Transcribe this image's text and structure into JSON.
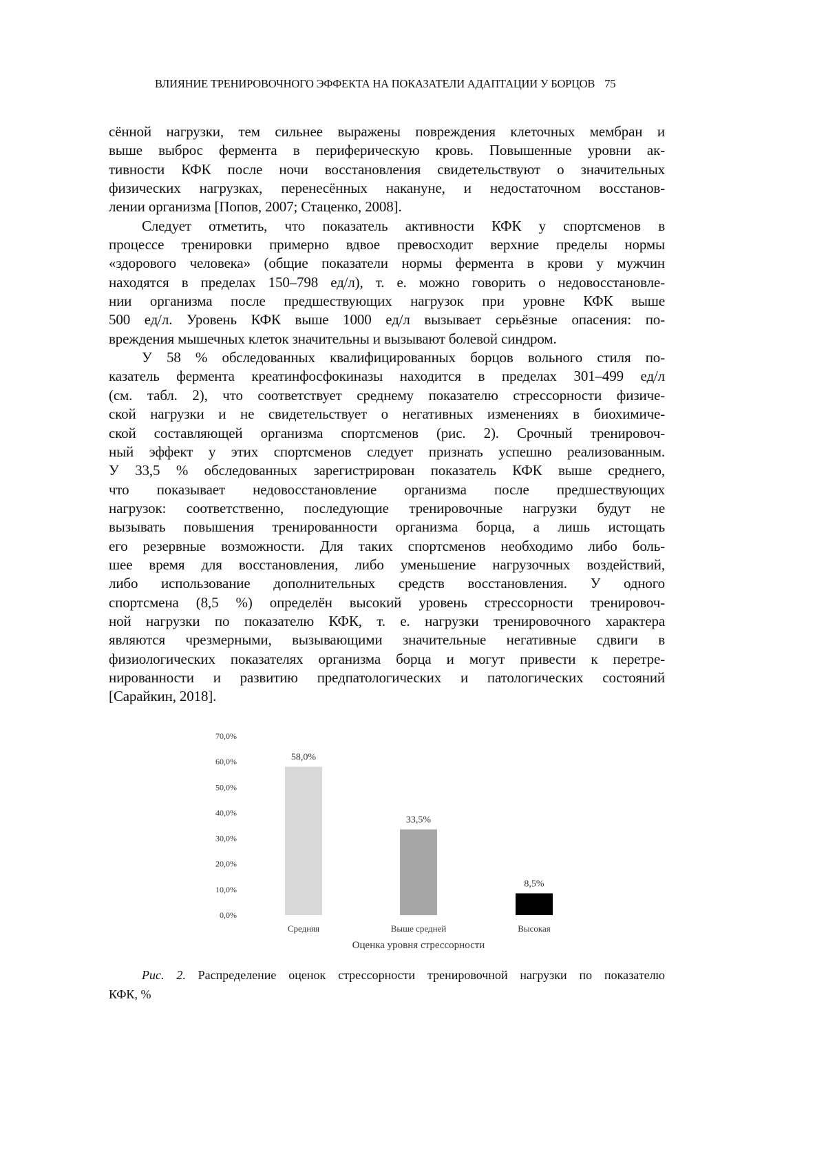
{
  "header": {
    "running_title": "ВЛИЯНИЕ ТРЕНИРОВОЧНОГО ЭФФЕКТА НА ПОКАЗАТЕЛИ АДАПТАЦИИ У БОРЦОВ",
    "page_number": "75"
  },
  "paragraphs": [
    {
      "indent": false,
      "lines": [
        "сённой нагрузки, тем сильнее выражены повреждения клеточных мембран и",
        "выше выброс фермента в периферическую кровь. Повышенные уровни ак-",
        "тивности КФК после ночи восстановления свидетельствуют о значительных",
        "физических нагрузках, перенесённых накануне, и недостаточном восстанов-",
        "лении организма [Попов, 2007; Стаценко, 2008]."
      ]
    },
    {
      "indent": true,
      "lines": [
        "Следует отметить, что показатель активности КФК у спортсменов в",
        "процессе тренировки примерно вдвое превосходит верхние пределы нормы",
        "«здорового человека» (общие показатели нормы фермента в крови у мужчин",
        "находятся в пределах 150–798 ед/л), т. е. можно говорить о недовосстановле-",
        "нии организма после предшествующих нагрузок при уровне КФК выше",
        "500 ед/л. Уровень КФК выше 1000 ед/л вызывает серьёзные опасения: по-",
        "вреждения мышечных клеток значительны и вызывают болевой синдром."
      ]
    },
    {
      "indent": true,
      "lines": [
        "У 58 % обследованных квалифицированных борцов вольного стиля по-",
        "казатель фермента креатинфосфокиназы находится в пределах 301–499 ед/л",
        "(см. табл. 2), что соответствует среднему показателю стрессорности физиче-",
        "ской нагрузки и не свидетельствует о негативных изменениях в биохимиче-",
        "ской составляющей организма спортсменов (рис. 2). Срочный тренировоч-",
        "ный эффект у этих спортсменов следует признать успешно реализованным.",
        "У 33,5 % обследованных зарегистрирован показатель КФК выше среднего,",
        "что показывает недовосстановление организма после предшествующих",
        "нагрузок: соответственно, последующие тренировочные нагрузки будут не",
        "вызывать повышения тренированности организма борца, а лишь истощать",
        "его резервные возможности. Для таких спортсменов необходимо либо боль-",
        "шее время для восстановления, либо уменьшение нагрузочных воздействий,",
        "либо использование дополнительных средств восстановления. У одного",
        "спортсмена (8,5 %) определён высокий уровень стрессорности тренировоч-",
        "ной нагрузки по показателю КФК, т. е. нагрузки тренировочного характера",
        "являются чрезмерными, вызывающими значительные негативные сдвиги в",
        "физиологических показателях организма борца и могут привести к перетре-",
        "нированности и развитию предпатологических и патологических состояний",
        "[Сарайкин, 2018]."
      ]
    }
  ],
  "chart_data": {
    "type": "bar",
    "categories": [
      "Средняя",
      "Выше средней",
      "Высокая"
    ],
    "values": [
      58.0,
      33.5,
      8.5
    ],
    "data_labels": [
      "58,0%",
      "33,5%",
      "8,5%"
    ],
    "xlabel": "Оценка уровня стрессорности",
    "ylabel": "",
    "ylim": [
      0,
      70
    ],
    "yticks": [
      "0,0%",
      "10,0%",
      "20,0%",
      "30,0%",
      "40,0%",
      "50,0%",
      "60,0%",
      "70,0%"
    ],
    "grid": false,
    "colors": [
      "#d9d9d9",
      "#a6a6a6",
      "#000000"
    ]
  },
  "caption": {
    "label": "Рис. 2.",
    "text": " Распределение оценок стрессорности тренировочной нагрузки по показателю",
    "text2": "КФК, %"
  }
}
